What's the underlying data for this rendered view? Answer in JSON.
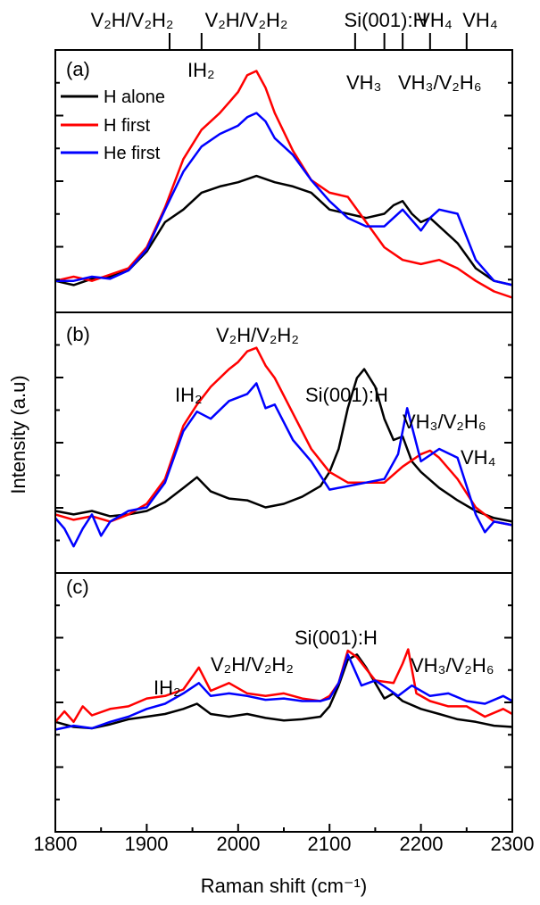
{
  "colors": {
    "h_alone": "#000000",
    "h_first": "#ff0000",
    "he_first": "#0000ff"
  },
  "chart_data": {
    "type": "line",
    "xlabel": "Raman shift (cm⁻¹)",
    "ylabel": "Intensity (a.u)",
    "xlim": [
      1800,
      2300
    ],
    "xticks": [
      "1800",
      "1900",
      "2000",
      "2100",
      "2200",
      "2300"
    ],
    "legend": {
      "placement": "top-left",
      "entries": [
        "H alone",
        "H first",
        "He first"
      ]
    },
    "top_axis_marks": {
      "labels": [
        "V₂H/V₂H₂",
        "V₂H/V₂H₂",
        "Si(001):H",
        "VH₄",
        "VH₄"
      ],
      "x": [
        1925,
        2023,
        2128,
        2210,
        2250
      ],
      "extra_tick_x": [
        1960,
        2160,
        2180
      ]
    },
    "panels": [
      {
        "label": "(a)",
        "annotations": [
          "IH₂",
          "VH₃",
          "VH₃/V₂H₆"
        ],
        "series": [
          {
            "name": "H alone",
            "x": [
              1800,
              1820,
              1840,
              1860,
              1880,
              1900,
              1920,
              1940,
              1960,
              1980,
              2000,
              2020,
              2040,
              2060,
              2080,
              2100,
              2120,
              2140,
              2160,
              2170,
              2180,
              2190,
              2200,
              2210,
              2220,
              2240,
              2260,
              2280,
              2300
            ],
            "y": [
              0.1,
              0.08,
              0.11,
              0.12,
              0.15,
              0.24,
              0.38,
              0.44,
              0.52,
              0.55,
              0.57,
              0.6,
              0.57,
              0.55,
              0.52,
              0.44,
              0.42,
              0.4,
              0.42,
              0.46,
              0.48,
              0.42,
              0.38,
              0.4,
              0.36,
              0.28,
              0.16,
              0.1,
              0.08
            ]
          },
          {
            "name": "H first",
            "x": [
              1800,
              1820,
              1840,
              1860,
              1880,
              1900,
              1920,
              1940,
              1960,
              1980,
              1990,
              2000,
              2010,
              2020,
              2030,
              2040,
              2060,
              2080,
              2100,
              2120,
              2140,
              2160,
              2180,
              2200,
              2220,
              2240,
              2260,
              2280,
              2300
            ],
            "y": [
              0.1,
              0.12,
              0.1,
              0.13,
              0.16,
              0.26,
              0.45,
              0.68,
              0.82,
              0.9,
              0.95,
              1.0,
              1.08,
              1.1,
              1.02,
              0.9,
              0.72,
              0.58,
              0.52,
              0.5,
              0.38,
              0.26,
              0.2,
              0.18,
              0.2,
              0.16,
              0.1,
              0.05,
              0.02
            ]
          },
          {
            "name": "He first",
            "x": [
              1800,
              1820,
              1840,
              1860,
              1880,
              1900,
              1920,
              1940,
              1960,
              1980,
              2000,
              2010,
              2020,
              2030,
              2040,
              2060,
              2080,
              2100,
              2120,
              2140,
              2160,
              2180,
              2200,
              2210,
              2220,
              2240,
              2260,
              2280,
              2300
            ],
            "y": [
              0.1,
              0.1,
              0.12,
              0.11,
              0.15,
              0.25,
              0.44,
              0.62,
              0.74,
              0.8,
              0.84,
              0.88,
              0.9,
              0.86,
              0.78,
              0.7,
              0.58,
              0.48,
              0.4,
              0.36,
              0.36,
              0.44,
              0.34,
              0.4,
              0.44,
              0.42,
              0.2,
              0.1,
              0.08
            ]
          }
        ]
      },
      {
        "label": "(b)",
        "annotations": [
          "V₂H/V₂H₂",
          "IH₂",
          "Si(001):H",
          "VH₃/V₂H₆",
          "VH₄"
        ],
        "series": [
          {
            "name": "H alone",
            "x": [
              1800,
              1820,
              1840,
              1860,
              1880,
              1900,
              1920,
              1940,
              1955,
              1970,
              1990,
              2010,
              2030,
              2050,
              2070,
              2090,
              2100,
              2110,
              2120,
              2130,
              2138,
              2150,
              2160,
              2170,
              2180,
              2190,
              2200,
              2220,
              2240,
              2260,
              2280,
              2300
            ],
            "y": [
              0.2,
              0.18,
              0.2,
              0.17,
              0.18,
              0.2,
              0.25,
              0.33,
              0.39,
              0.31,
              0.27,
              0.26,
              0.22,
              0.24,
              0.28,
              0.34,
              0.42,
              0.55,
              0.78,
              0.95,
              1.0,
              0.9,
              0.72,
              0.6,
              0.62,
              0.48,
              0.42,
              0.33,
              0.26,
              0.2,
              0.16,
              0.14
            ]
          },
          {
            "name": "H first",
            "x": [
              1800,
              1820,
              1840,
              1860,
              1880,
              1900,
              1920,
              1940,
              1955,
              1970,
              1990,
              2000,
              2010,
              2020,
              2030,
              2040,
              2060,
              2080,
              2100,
              2120,
              2140,
              2160,
              2180,
              2200,
              2210,
              2220,
              2240,
              2260,
              2280,
              2300
            ],
            "y": [
              0.18,
              0.15,
              0.17,
              0.14,
              0.18,
              0.24,
              0.38,
              0.68,
              0.8,
              0.9,
              1.0,
              1.04,
              1.1,
              1.12,
              1.02,
              0.95,
              0.75,
              0.55,
              0.42,
              0.36,
              0.36,
              0.36,
              0.45,
              0.52,
              0.54,
              0.5,
              0.38,
              0.22,
              0.14,
              0.12
            ]
          },
          {
            "name": "He first",
            "x": [
              1800,
              1810,
              1820,
              1830,
              1840,
              1850,
              1860,
              1880,
              1900,
              1920,
              1940,
              1955,
              1970,
              1990,
              2010,
              2020,
              2030,
              2040,
              2060,
              2080,
              2100,
              2120,
              2140,
              2160,
              2175,
              2185,
              2200,
              2220,
              2240,
              2260,
              2270,
              2280,
              2300
            ],
            "y": [
              0.16,
              0.1,
              0.0,
              0.1,
              0.18,
              0.06,
              0.14,
              0.2,
              0.22,
              0.36,
              0.65,
              0.76,
              0.72,
              0.82,
              0.86,
              0.92,
              0.78,
              0.8,
              0.6,
              0.48,
              0.32,
              0.34,
              0.36,
              0.38,
              0.52,
              0.78,
              0.48,
              0.55,
              0.5,
              0.18,
              0.08,
              0.14,
              0.12
            ]
          }
        ]
      },
      {
        "label": "(c)",
        "annotations": [
          "IH₂",
          "V₂H/V₂H₂",
          "Si(001):H",
          "VH₃/V₂H₆"
        ],
        "series": [
          {
            "name": "H alone",
            "x": [
              1800,
              1820,
              1840,
              1860,
              1880,
              1900,
              1920,
              1940,
              1955,
              1970,
              1990,
              2010,
              2030,
              2050,
              2070,
              2090,
              2100,
              2110,
              2120,
              2130,
              2140,
              2150,
              2160,
              2170,
              2180,
              2200,
              2220,
              2240,
              2260,
              2280,
              2300
            ],
            "y": [
              0.3,
              0.26,
              0.25,
              0.28,
              0.32,
              0.34,
              0.36,
              0.4,
              0.44,
              0.36,
              0.34,
              0.36,
              0.33,
              0.31,
              0.32,
              0.34,
              0.42,
              0.58,
              0.78,
              0.82,
              0.72,
              0.6,
              0.48,
              0.52,
              0.46,
              0.4,
              0.36,
              0.32,
              0.3,
              0.27,
              0.26
            ]
          },
          {
            "name": "H first",
            "x": [
              1800,
              1810,
              1820,
              1830,
              1840,
              1860,
              1880,
              1900,
              1920,
              1940,
              1957,
              1970,
              1990,
              2010,
              2030,
              2050,
              2070,
              2090,
              2100,
              2110,
              2120,
              2130,
              2150,
              2170,
              2180,
              2186,
              2195,
              2210,
              2230,
              2250,
              2270,
              2290,
              2300
            ],
            "y": [
              0.3,
              0.38,
              0.3,
              0.42,
              0.35,
              0.4,
              0.42,
              0.48,
              0.5,
              0.55,
              0.72,
              0.54,
              0.6,
              0.52,
              0.5,
              0.52,
              0.48,
              0.46,
              0.5,
              0.6,
              0.85,
              0.8,
              0.62,
              0.6,
              0.75,
              0.86,
              0.52,
              0.46,
              0.42,
              0.42,
              0.34,
              0.4,
              0.36
            ]
          },
          {
            "name": "He first",
            "x": [
              1800,
              1820,
              1840,
              1860,
              1880,
              1900,
              1920,
              1940,
              1957,
              1970,
              1990,
              2010,
              2030,
              2050,
              2070,
              2090,
              2100,
              2110,
              2120,
              2135,
              2150,
              2165,
              2175,
              2190,
              2210,
              2230,
              2250,
              2270,
              2290,
              2300
            ],
            "y": [
              0.24,
              0.27,
              0.25,
              0.3,
              0.34,
              0.4,
              0.44,
              0.52,
              0.6,
              0.5,
              0.52,
              0.5,
              0.47,
              0.48,
              0.46,
              0.46,
              0.48,
              0.6,
              0.82,
              0.58,
              0.62,
              0.55,
              0.5,
              0.58,
              0.5,
              0.52,
              0.46,
              0.44,
              0.5,
              0.46
            ]
          }
        ]
      }
    ]
  }
}
